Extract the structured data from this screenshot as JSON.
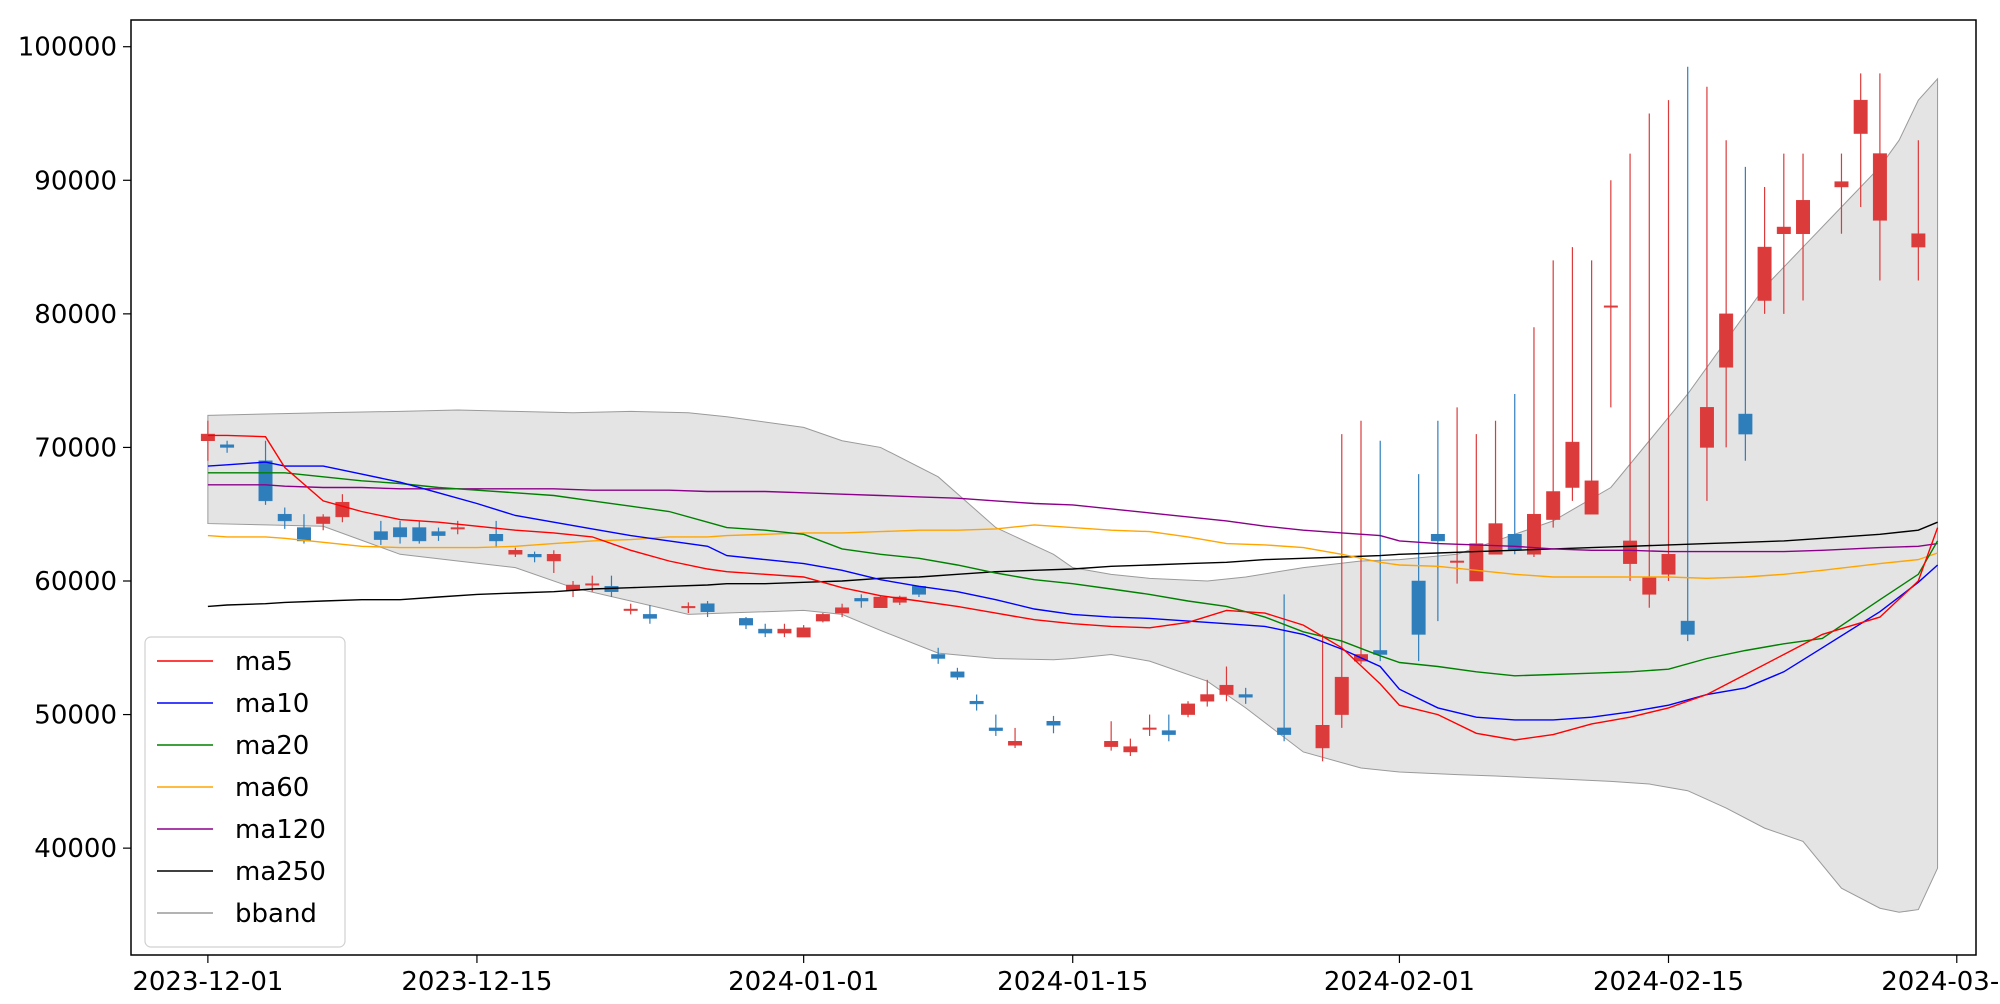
{
  "chart_data": {
    "type": "candlestick",
    "title": "",
    "xlabel": "",
    "ylabel": "",
    "ylim": [
      32000,
      102000
    ],
    "xlim": [
      "2023-11-27",
      "2024-03-02"
    ],
    "grid": false,
    "legend_position": "lower-left",
    "colors": {
      "up": "#dc3b3b",
      "down": "#2f7ebc",
      "ma5": "#ff0000",
      "ma10": "#0000ff",
      "ma20": "#008000",
      "ma60": "#ffa500",
      "ma120": "#8b008b",
      "ma250": "#000000",
      "bband_fill": "#e4e4e4",
      "bband_edge": "#9a9a9a"
    },
    "x_ticks": [
      "2023-12-01",
      "2023-12-15",
      "2024-01-01",
      "2024-01-15",
      "2024-02-01",
      "2024-02-15",
      "2024-03-01"
    ],
    "y_ticks": [
      40000,
      50000,
      60000,
      70000,
      80000,
      90000,
      100000
    ],
    "dates": [
      "2023-12-01",
      "2023-12-02",
      "2023-12-04",
      "2023-12-05",
      "2023-12-06",
      "2023-12-07",
      "2023-12-08",
      "2023-12-10",
      "2023-12-11",
      "2023-12-12",
      "2023-12-13",
      "2023-12-14",
      "2023-12-16",
      "2023-12-17",
      "2023-12-18",
      "2023-12-19",
      "2023-12-20",
      "2023-12-21",
      "2023-12-22",
      "2023-12-23",
      "2023-12-24",
      "2023-12-26",
      "2023-12-27",
      "2023-12-29",
      "2023-12-30",
      "2023-12-31",
      "2024-01-01",
      "2024-01-02",
      "2024-01-03",
      "2024-01-04",
      "2024-01-05",
      "2024-01-06",
      "2024-01-07",
      "2024-01-08",
      "2024-01-09",
      "2024-01-10",
      "2024-01-11",
      "2024-01-12",
      "2024-01-14",
      "2024-01-17",
      "2024-01-18",
      "2024-01-19",
      "2024-01-20",
      "2024-01-21",
      "2024-01-22",
      "2024-01-23",
      "2024-01-24",
      "2024-01-26",
      "2024-01-28",
      "2024-01-29",
      "2024-01-30",
      "2024-01-31",
      "2024-02-02",
      "2024-02-03",
      "2024-02-04",
      "2024-02-05",
      "2024-02-06",
      "2024-02-07",
      "2024-02-08",
      "2024-02-09",
      "2024-02-10",
      "2024-02-11",
      "2024-02-12",
      "2024-02-13",
      "2024-02-14",
      "2024-02-15",
      "2024-02-16",
      "2024-02-17",
      "2024-02-18",
      "2024-02-19",
      "2024-02-20",
      "2024-02-21",
      "2024-02-22",
      "2024-02-24",
      "2024-02-25",
      "2024-02-26",
      "2024-02-28"
    ],
    "open": [
      70500,
      70200,
      69000,
      65000,
      64000,
      64300,
      64800,
      63700,
      64000,
      64000,
      63700,
      64000,
      63500,
      62000,
      62000,
      61500,
      59300,
      59800,
      59600,
      57900,
      57500,
      58000,
      58300,
      57200,
      56400,
      56100,
      55800,
      57000,
      57600,
      58700,
      58000,
      58400,
      59600,
      54500,
      53200,
      51000,
      49000,
      47700,
      49500,
      47600,
      47200,
      48900,
      48800,
      50000,
      51000,
      51500,
      51500,
      49000,
      47500,
      50000,
      54000,
      54800,
      60000,
      63500,
      61500,
      60000,
      62000,
      63500,
      62000,
      64600,
      67000,
      65000,
      80500,
      61300,
      59000,
      60500,
      57000,
      70000,
      76000,
      72500,
      81000,
      86000,
      86000,
      89500,
      93500,
      87000,
      85000
    ],
    "close": [
      71000,
      70000,
      66000,
      64500,
      63000,
      64800,
      65900,
      63100,
      63300,
      63000,
      63400,
      64000,
      63000,
      62300,
      61800,
      62000,
      59700,
      59800,
      59200,
      57900,
      57200,
      58100,
      57700,
      56700,
      56100,
      56400,
      56500,
      57500,
      58000,
      58500,
      58800,
      58800,
      59000,
      54200,
      52800,
      50800,
      48800,
      48000,
      49200,
      48000,
      47600,
      49000,
      48500,
      50800,
      51500,
      52200,
      51300,
      48500,
      49200,
      52800,
      54500,
      54500,
      56000,
      63000,
      61500,
      62800,
      64300,
      62300,
      65000,
      66700,
      70400,
      67500,
      80600,
      63000,
      60300,
      62000,
      56000,
      73000,
      80000,
      71000,
      85000,
      86500,
      88500,
      89900,
      96000,
      92000,
      86000
    ],
    "high": [
      72000,
      70500,
      70500,
      65500,
      65000,
      65000,
      66500,
      64500,
      64500,
      64500,
      64000,
      64500,
      64500,
      62500,
      62200,
      62300,
      60000,
      60400,
      60400,
      58300,
      58200,
      58400,
      58500,
      57300,
      56800,
      56800,
      56700,
      57600,
      58300,
      59000,
      58900,
      58900,
      59500,
      55000,
      53500,
      51500,
      50000,
      49000,
      49900,
      49500,
      48200,
      50000,
      50000,
      51000,
      52600,
      53600,
      52000,
      59000,
      56000,
      71000,
      72000,
      70500,
      68000,
      72000,
      73000,
      71000,
      72000,
      74000,
      79000,
      84000,
      85000,
      84000,
      90000,
      92000,
      95000,
      96000,
      98500,
      97000,
      93000,
      91000,
      89500,
      92000,
      92000,
      92000,
      98000,
      98000,
      93000
    ],
    "low": [
      69000,
      69600,
      65700,
      63900,
      62800,
      63800,
      64400,
      62700,
      62800,
      62800,
      63000,
      63500,
      62500,
      61800,
      61400,
      60600,
      58800,
      59200,
      58800,
      57500,
      56800,
      57600,
      57300,
      56400,
      55800,
      55800,
      55800,
      56900,
      57300,
      58000,
      58200,
      58200,
      58800,
      53800,
      52600,
      50300,
      48400,
      47500,
      48600,
      47300,
      46900,
      48400,
      48000,
      49800,
      50600,
      51000,
      50800,
      48000,
      46500,
      49000,
      53800,
      54000,
      54000,
      57000,
      59800,
      60000,
      62000,
      62000,
      61800,
      64000,
      66000,
      65000,
      73000,
      60000,
      58000,
      60000,
      55500,
      66000,
      70000,
      69000,
      80000,
      80000,
      81000,
      86000,
      88000,
      82500,
      82500
    ],
    "ma5_dates": [
      "2023-12-01",
      "2023-12-02",
      "2023-12-04",
      "2023-12-05",
      "2023-12-07",
      "2023-12-09",
      "2023-12-11",
      "2023-12-13",
      "2023-12-15",
      "2023-12-17",
      "2023-12-19",
      "2023-12-21",
      "2023-12-23",
      "2023-12-25",
      "2023-12-27",
      "2023-12-28",
      "2023-12-30",
      "2024-01-01",
      "2024-01-03",
      "2024-01-05",
      "2024-01-07",
      "2024-01-09",
      "2024-01-11",
      "2024-01-13",
      "2024-01-15",
      "2024-01-17",
      "2024-01-19",
      "2024-01-21",
      "2024-01-23",
      "2024-01-25",
      "2024-01-27",
      "2024-01-29",
      "2024-01-31",
      "2024-02-01",
      "2024-02-03",
      "2024-02-05",
      "2024-02-07",
      "2024-02-09",
      "2024-02-11",
      "2024-02-13",
      "2024-02-15",
      "2024-02-17",
      "2024-02-19",
      "2024-02-21",
      "2024-02-23",
      "2024-02-26",
      "2024-02-28",
      "2024-02-29"
    ],
    "ma5": [
      70900,
      70900,
      70800,
      68500,
      66000,
      65200,
      64600,
      64400,
      64100,
      63800,
      63600,
      63300,
      62300,
      61500,
      60900,
      60700,
      60500,
      60300,
      59500,
      58900,
      58500,
      58100,
      57600,
      57100,
      56800,
      56600,
      56500,
      56900,
      57800,
      57600,
      56700,
      55000,
      52300,
      50700,
      50000,
      48600,
      48100,
      48500,
      49300,
      49800,
      50500,
      51500,
      53000,
      54500,
      56000,
      57300,
      60000,
      64000
    ],
    "ma10": [
      68600,
      68700,
      68900,
      68600,
      68600,
      68000,
      67400,
      66600,
      65800,
      64900,
      64400,
      63900,
      63400,
      63000,
      62600,
      61900,
      61600,
      61300,
      60800,
      60100,
      59600,
      59200,
      58600,
      57900,
      57500,
      57300,
      57200,
      57000,
      56800,
      56600,
      56000,
      54900,
      53600,
      51900,
      50500,
      49800,
      49600,
      49600,
      49800,
      50200,
      50700,
      51500,
      52000,
      53200,
      55000,
      57700,
      59900,
      61200
    ],
    "ma20": [
      68100,
      68100,
      68100,
      68100,
      67800,
      67500,
      67300,
      67000,
      66800,
      66600,
      66400,
      66000,
      65600,
      65200,
      64400,
      64000,
      63800,
      63500,
      62400,
      62000,
      61700,
      61200,
      60600,
      60100,
      59800,
      59400,
      59000,
      58500,
      58100,
      57300,
      56200,
      55500,
      54400,
      53900,
      53600,
      53200,
      52900,
      53000,
      53100,
      53200,
      53400,
      54200,
      54800,
      55300,
      55700,
      58600,
      60500,
      63000
    ],
    "ma60": [
      63400,
      63300,
      63300,
      63200,
      62900,
      62600,
      62500,
      62500,
      62500,
      62600,
      62800,
      63000,
      63100,
      63300,
      63300,
      63400,
      63500,
      63600,
      63600,
      63700,
      63800,
      63800,
      63900,
      64200,
      64000,
      63800,
      63700,
      63300,
      62800,
      62700,
      62500,
      62000,
      61400,
      61200,
      61100,
      60800,
      60500,
      60300,
      60300,
      60300,
      60300,
      60200,
      60300,
      60500,
      60800,
      61300,
      61600,
      62100
    ],
    "ma120": [
      67200,
      67200,
      67200,
      67100,
      67000,
      67000,
      66900,
      66900,
      66900,
      66900,
      66900,
      66800,
      66800,
      66800,
      66700,
      66700,
      66700,
      66600,
      66500,
      66400,
      66300,
      66200,
      66000,
      65800,
      65700,
      65400,
      65100,
      64800,
      64500,
      64100,
      63800,
      63600,
      63400,
      63000,
      62800,
      62700,
      62600,
      62400,
      62300,
      62300,
      62200,
      62200,
      62200,
      62200,
      62300,
      62500,
      62600,
      62800
    ],
    "ma250": [
      58100,
      58200,
      58300,
      58400,
      58500,
      58600,
      58600,
      58800,
      59000,
      59100,
      59200,
      59400,
      59500,
      59600,
      59700,
      59800,
      59800,
      59900,
      60000,
      60200,
      60300,
      60500,
      60700,
      60800,
      60900,
      61100,
      61200,
      61300,
      61400,
      61600,
      61700,
      61800,
      61900,
      62000,
      62100,
      62200,
      62300,
      62400,
      62500,
      62600,
      62700,
      62800,
      62900,
      63000,
      63200,
      63500,
      63800,
      64400
    ],
    "bb_upper": [
      72400,
      72500,
      72600,
      72700,
      72800,
      72700,
      72600,
      72700,
      72600,
      72300,
      71500,
      70500,
      70000,
      67800,
      64000,
      62000,
      61000,
      60500,
      60200,
      60000,
      60300,
      61000,
      61500,
      61600,
      62000,
      63000,
      64500,
      67000,
      70500,
      74000,
      78000,
      82000,
      85000,
      88000,
      91000,
      93000,
      96000,
      97600
    ],
    "bb_lower": [
      64300,
      64200,
      64100,
      62000,
      61500,
      61000,
      59500,
      58500,
      57500,
      57600,
      57800,
      57500,
      56300,
      54600,
      54200,
      54100,
      54200,
      54500,
      54000,
      52500,
      50500,
      47200,
      46000,
      45700,
      45500,
      45400,
      45200,
      45000,
      44800,
      44300,
      43000,
      41500,
      40500,
      37000,
      35500,
      35200,
      35400,
      38500
    ],
    "bb_dates": [
      "2023-12-01",
      "2023-12-04",
      "2023-12-07",
      "2023-12-11",
      "2023-12-14",
      "2023-12-17",
      "2023-12-20",
      "2023-12-23",
      "2023-12-26",
      "2023-12-28",
      "2024-01-01",
      "2024-01-03",
      "2024-01-05",
      "2024-01-08",
      "2024-01-11",
      "2024-01-14",
      "2024-01-15",
      "2024-01-17",
      "2024-01-19",
      "2024-01-22",
      "2024-01-24",
      "2024-01-27",
      "2024-01-30",
      "2024-02-01",
      "2024-02-04",
      "2024-02-06",
      "2024-02-09",
      "2024-02-12",
      "2024-02-14",
      "2024-02-16",
      "2024-02-18",
      "2024-02-20",
      "2024-02-22",
      "2024-02-24",
      "2024-02-26",
      "2024-02-27",
      "2024-02-28",
      "2024-02-29"
    ],
    "legend": [
      {
        "label": "ma5",
        "color": "#ff0000"
      },
      {
        "label": "ma10",
        "color": "#0000ff"
      },
      {
        "label": "ma20",
        "color": "#008000"
      },
      {
        "label": "ma60",
        "color": "#ffa500"
      },
      {
        "label": "ma120",
        "color": "#8b008b"
      },
      {
        "label": "ma250",
        "color": "#000000"
      },
      {
        "label": "bband",
        "color": "#9a9a9a"
      }
    ]
  }
}
